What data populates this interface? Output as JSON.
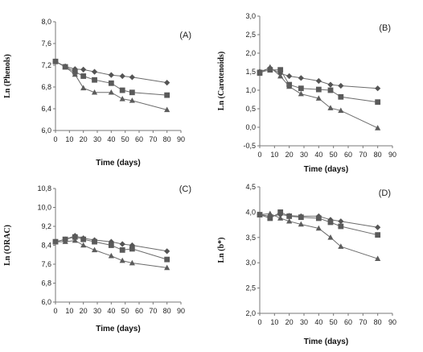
{
  "chart_data": [
    {
      "type": "line",
      "panel_label": "(A)",
      "xlabel": "Time (days)",
      "ylabel": "Ln (Phenols)",
      "xlim": [
        0,
        90
      ],
      "ylim": [
        6.0,
        8.0
      ],
      "xticks": [
        "0",
        "10",
        "20",
        "30",
        "40",
        "50",
        "60",
        "70",
        "80",
        "90"
      ],
      "yticks": [
        "6,0",
        "6,4",
        "6,8",
        "7,2",
        "7,6",
        "8,0"
      ],
      "series": [
        {
          "marker": "diamond",
          "x": [
            0,
            7,
            14,
            20,
            28,
            40,
            48,
            55,
            80
          ],
          "y": [
            7.27,
            7.18,
            7.13,
            7.12,
            7.08,
            7.02,
            7.0,
            6.98,
            6.88
          ]
        },
        {
          "marker": "square",
          "x": [
            0,
            7,
            14,
            20,
            28,
            40,
            48,
            55,
            80
          ],
          "y": [
            7.27,
            7.17,
            7.08,
            7.0,
            6.93,
            6.87,
            6.74,
            6.7,
            6.65
          ]
        },
        {
          "marker": "triangle",
          "x": [
            0,
            7,
            14,
            20,
            28,
            40,
            48,
            55,
            80
          ],
          "y": [
            7.27,
            7.17,
            7.03,
            6.78,
            6.7,
            6.7,
            6.58,
            6.55,
            6.38
          ]
        }
      ]
    },
    {
      "type": "line",
      "panel_label": "(B)",
      "xlabel": "Time (days)",
      "ylabel": "Ln (Carotenoids)",
      "xlim": [
        0,
        90
      ],
      "ylim": [
        -0.5,
        3.0
      ],
      "xticks": [
        "0",
        "10",
        "20",
        "30",
        "40",
        "50",
        "60",
        "70",
        "80",
        "90"
      ],
      "yticks": [
        "-0,5",
        "0,0",
        "0,5",
        "1,0",
        "1,5",
        "2,0",
        "2,5",
        "3,0"
      ],
      "series": [
        {
          "marker": "diamond",
          "x": [
            0,
            7,
            14,
            20,
            28,
            40,
            48,
            55,
            80
          ],
          "y": [
            1.5,
            1.6,
            1.45,
            1.38,
            1.33,
            1.25,
            1.15,
            1.12,
            1.05
          ]
        },
        {
          "marker": "square",
          "x": [
            0,
            7,
            14,
            20,
            28,
            40,
            48,
            55,
            80
          ],
          "y": [
            1.48,
            1.55,
            1.55,
            1.15,
            1.05,
            1.02,
            1.0,
            0.82,
            0.68
          ]
        },
        {
          "marker": "triangle",
          "x": [
            0,
            7,
            14,
            20,
            28,
            40,
            48,
            55,
            80
          ],
          "y": [
            1.45,
            1.62,
            1.38,
            1.1,
            0.9,
            0.78,
            0.52,
            0.45,
            -0.02
          ]
        }
      ]
    },
    {
      "type": "line",
      "panel_label": "(C)",
      "xlabel": "Time (days)",
      "ylabel": "Ln (ORAC)",
      "xlim": [
        0,
        90
      ],
      "ylim": [
        6.0,
        10.8
      ],
      "xticks": [
        "0",
        "10",
        "20",
        "30",
        "40",
        "50",
        "60",
        "70",
        "80",
        "90"
      ],
      "yticks": [
        "6,0",
        "6,8",
        "7,6",
        "8,4",
        "9,2",
        "10,0",
        "10,8"
      ],
      "series": [
        {
          "marker": "diamond",
          "x": [
            0,
            7,
            14,
            20,
            28,
            40,
            48,
            55,
            80
          ],
          "y": [
            8.55,
            8.65,
            8.8,
            8.7,
            8.62,
            8.55,
            8.45,
            8.4,
            8.15
          ]
        },
        {
          "marker": "square",
          "x": [
            0,
            7,
            14,
            20,
            28,
            40,
            48,
            55,
            80
          ],
          "y": [
            8.55,
            8.65,
            8.75,
            8.65,
            8.55,
            8.4,
            8.2,
            8.25,
            7.8
          ]
        },
        {
          "marker": "triangle",
          "x": [
            0,
            7,
            14,
            20,
            28,
            40,
            48,
            55,
            80
          ],
          "y": [
            8.55,
            8.55,
            8.6,
            8.4,
            8.2,
            7.95,
            7.75,
            7.65,
            7.45
          ]
        }
      ]
    },
    {
      "type": "line",
      "panel_label": "(D)",
      "xlabel": "Time (days)",
      "ylabel": "Ln (b*)",
      "xlim": [
        0,
        90
      ],
      "ylim": [
        2.0,
        4.5
      ],
      "xticks": [
        "0",
        "10",
        "20",
        "30",
        "40",
        "50",
        "60",
        "70",
        "80",
        "90"
      ],
      "yticks": [
        "2,0",
        "2,5",
        "3,0",
        "3,5",
        "4,0",
        "4,5"
      ],
      "series": [
        {
          "marker": "diamond",
          "x": [
            0,
            7,
            14,
            20,
            28,
            40,
            48,
            55,
            80
          ],
          "y": [
            3.95,
            3.92,
            3.95,
            3.93,
            3.92,
            3.92,
            3.85,
            3.82,
            3.7
          ]
        },
        {
          "marker": "square",
          "x": [
            0,
            7,
            14,
            20,
            28,
            40,
            48,
            55,
            80
          ],
          "y": [
            3.95,
            3.88,
            4.0,
            3.92,
            3.9,
            3.88,
            3.8,
            3.72,
            3.55
          ]
        },
        {
          "marker": "triangle",
          "x": [
            0,
            7,
            14,
            20,
            28,
            40,
            48,
            55,
            80
          ],
          "y": [
            3.95,
            3.97,
            3.88,
            3.82,
            3.76,
            3.68,
            3.5,
            3.32,
            3.08
          ]
        }
      ]
    }
  ]
}
